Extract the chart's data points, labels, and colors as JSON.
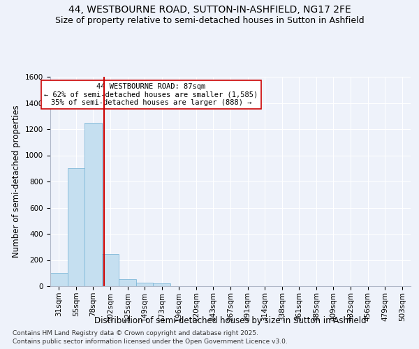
{
  "title1": "44, WESTBOURNE ROAD, SUTTON-IN-ASHFIELD, NG17 2FE",
  "title2": "Size of property relative to semi-detached houses in Sutton in Ashfield",
  "xlabel": "Distribution of semi-detached houses by size in Sutton in Ashfield",
  "ylabel": "Number of semi-detached properties",
  "annotation_title": "44 WESTBOURNE ROAD: 87sqm",
  "annotation_line1": "← 62% of semi-detached houses are smaller (1,585)",
  "annotation_line2": "35% of semi-detached houses are larger (888) →",
  "footer1": "Contains HM Land Registry data © Crown copyright and database right 2025.",
  "footer2": "Contains public sector information licensed under the Open Government Licence v3.0.",
  "bin_labels": [
    "31sqm",
    "55sqm",
    "78sqm",
    "102sqm",
    "125sqm",
    "149sqm",
    "173sqm",
    "196sqm",
    "220sqm",
    "243sqm",
    "267sqm",
    "291sqm",
    "314sqm",
    "338sqm",
    "361sqm",
    "385sqm",
    "409sqm",
    "432sqm",
    "456sqm",
    "479sqm",
    "503sqm"
  ],
  "bar_values": [
    100,
    900,
    1250,
    245,
    55,
    25,
    20,
    0,
    0,
    0,
    0,
    0,
    0,
    0,
    0,
    0,
    0,
    0,
    0,
    0,
    0
  ],
  "bar_color": "#c5dff0",
  "bar_edge_color": "#7fb8d8",
  "vline_color": "#cc0000",
  "vline_x": 2.65,
  "ylim": [
    0,
    1600
  ],
  "background_color": "#eef2fa",
  "grid_color": "#ffffff",
  "annotation_box_color": "#cc0000",
  "title_fontsize": 10,
  "subtitle_fontsize": 9,
  "axis_label_fontsize": 8.5,
  "tick_fontsize": 7.5,
  "annotation_fontsize": 7.5,
  "footer_fontsize": 6.5
}
